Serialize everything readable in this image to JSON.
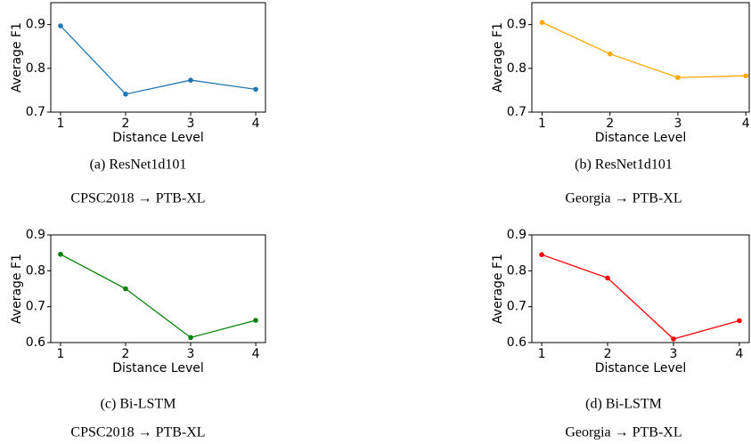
{
  "chart_data": [
    {
      "type": "line",
      "x": [
        1,
        2,
        3,
        4
      ],
      "values": [
        0.897,
        0.741,
        0.773,
        0.752
      ],
      "color": "#1f77b4",
      "xlim": [
        0.85,
        4.15
      ],
      "ylim": [
        0.7,
        0.95
      ],
      "xticks": [
        1,
        2,
        3,
        4
      ],
      "yticks": [
        0.7,
        0.8,
        0.9
      ],
      "xlabel": "Distance Level",
      "ylabel": "Average F1",
      "caption": "(a) ResNet1d101",
      "subcaption": "CPSC2018 → PTB-XL"
    },
    {
      "type": "line",
      "x": [
        1,
        2,
        3,
        4
      ],
      "values": [
        0.905,
        0.833,
        0.779,
        0.783
      ],
      "color": "#ffa500",
      "xlim": [
        0.85,
        4.05
      ],
      "ylim": [
        0.7,
        0.95
      ],
      "xticks": [
        1,
        2,
        3,
        4
      ],
      "yticks": [
        0.7,
        0.8,
        0.9
      ],
      "xlabel": "Distance Level",
      "ylabel": "Average F1",
      "caption": "(b) ResNet1d101",
      "subcaption": "Georgia → PTB-XL"
    },
    {
      "type": "line",
      "x": [
        1,
        2,
        3,
        4
      ],
      "values": [
        0.846,
        0.75,
        0.614,
        0.662
      ],
      "color": "#008000",
      "xlim": [
        0.85,
        4.15
      ],
      "ylim": [
        0.6,
        0.9
      ],
      "xticks": [
        1,
        2,
        3,
        4
      ],
      "yticks": [
        0.6,
        0.7,
        0.8,
        0.9
      ],
      "xlabel": "Distance Level",
      "ylabel": "Average F1",
      "caption": "(c) Bi-LSTM",
      "subcaption": "CPSC2018 → PTB-XL"
    },
    {
      "type": "line",
      "x": [
        1,
        2,
        3,
        4
      ],
      "values": [
        0.845,
        0.78,
        0.61,
        0.661
      ],
      "color": "#ff0000",
      "xlim": [
        0.85,
        4.15
      ],
      "ylim": [
        0.6,
        0.9
      ],
      "xticks": [
        1,
        2,
        3,
        4
      ],
      "yticks": [
        0.6,
        0.7,
        0.8,
        0.9
      ],
      "xlabel": "Distance Level",
      "ylabel": "Average F1",
      "caption": "(d) Bi-LSTM",
      "subcaption": "Georgia → PTB-XL"
    }
  ]
}
